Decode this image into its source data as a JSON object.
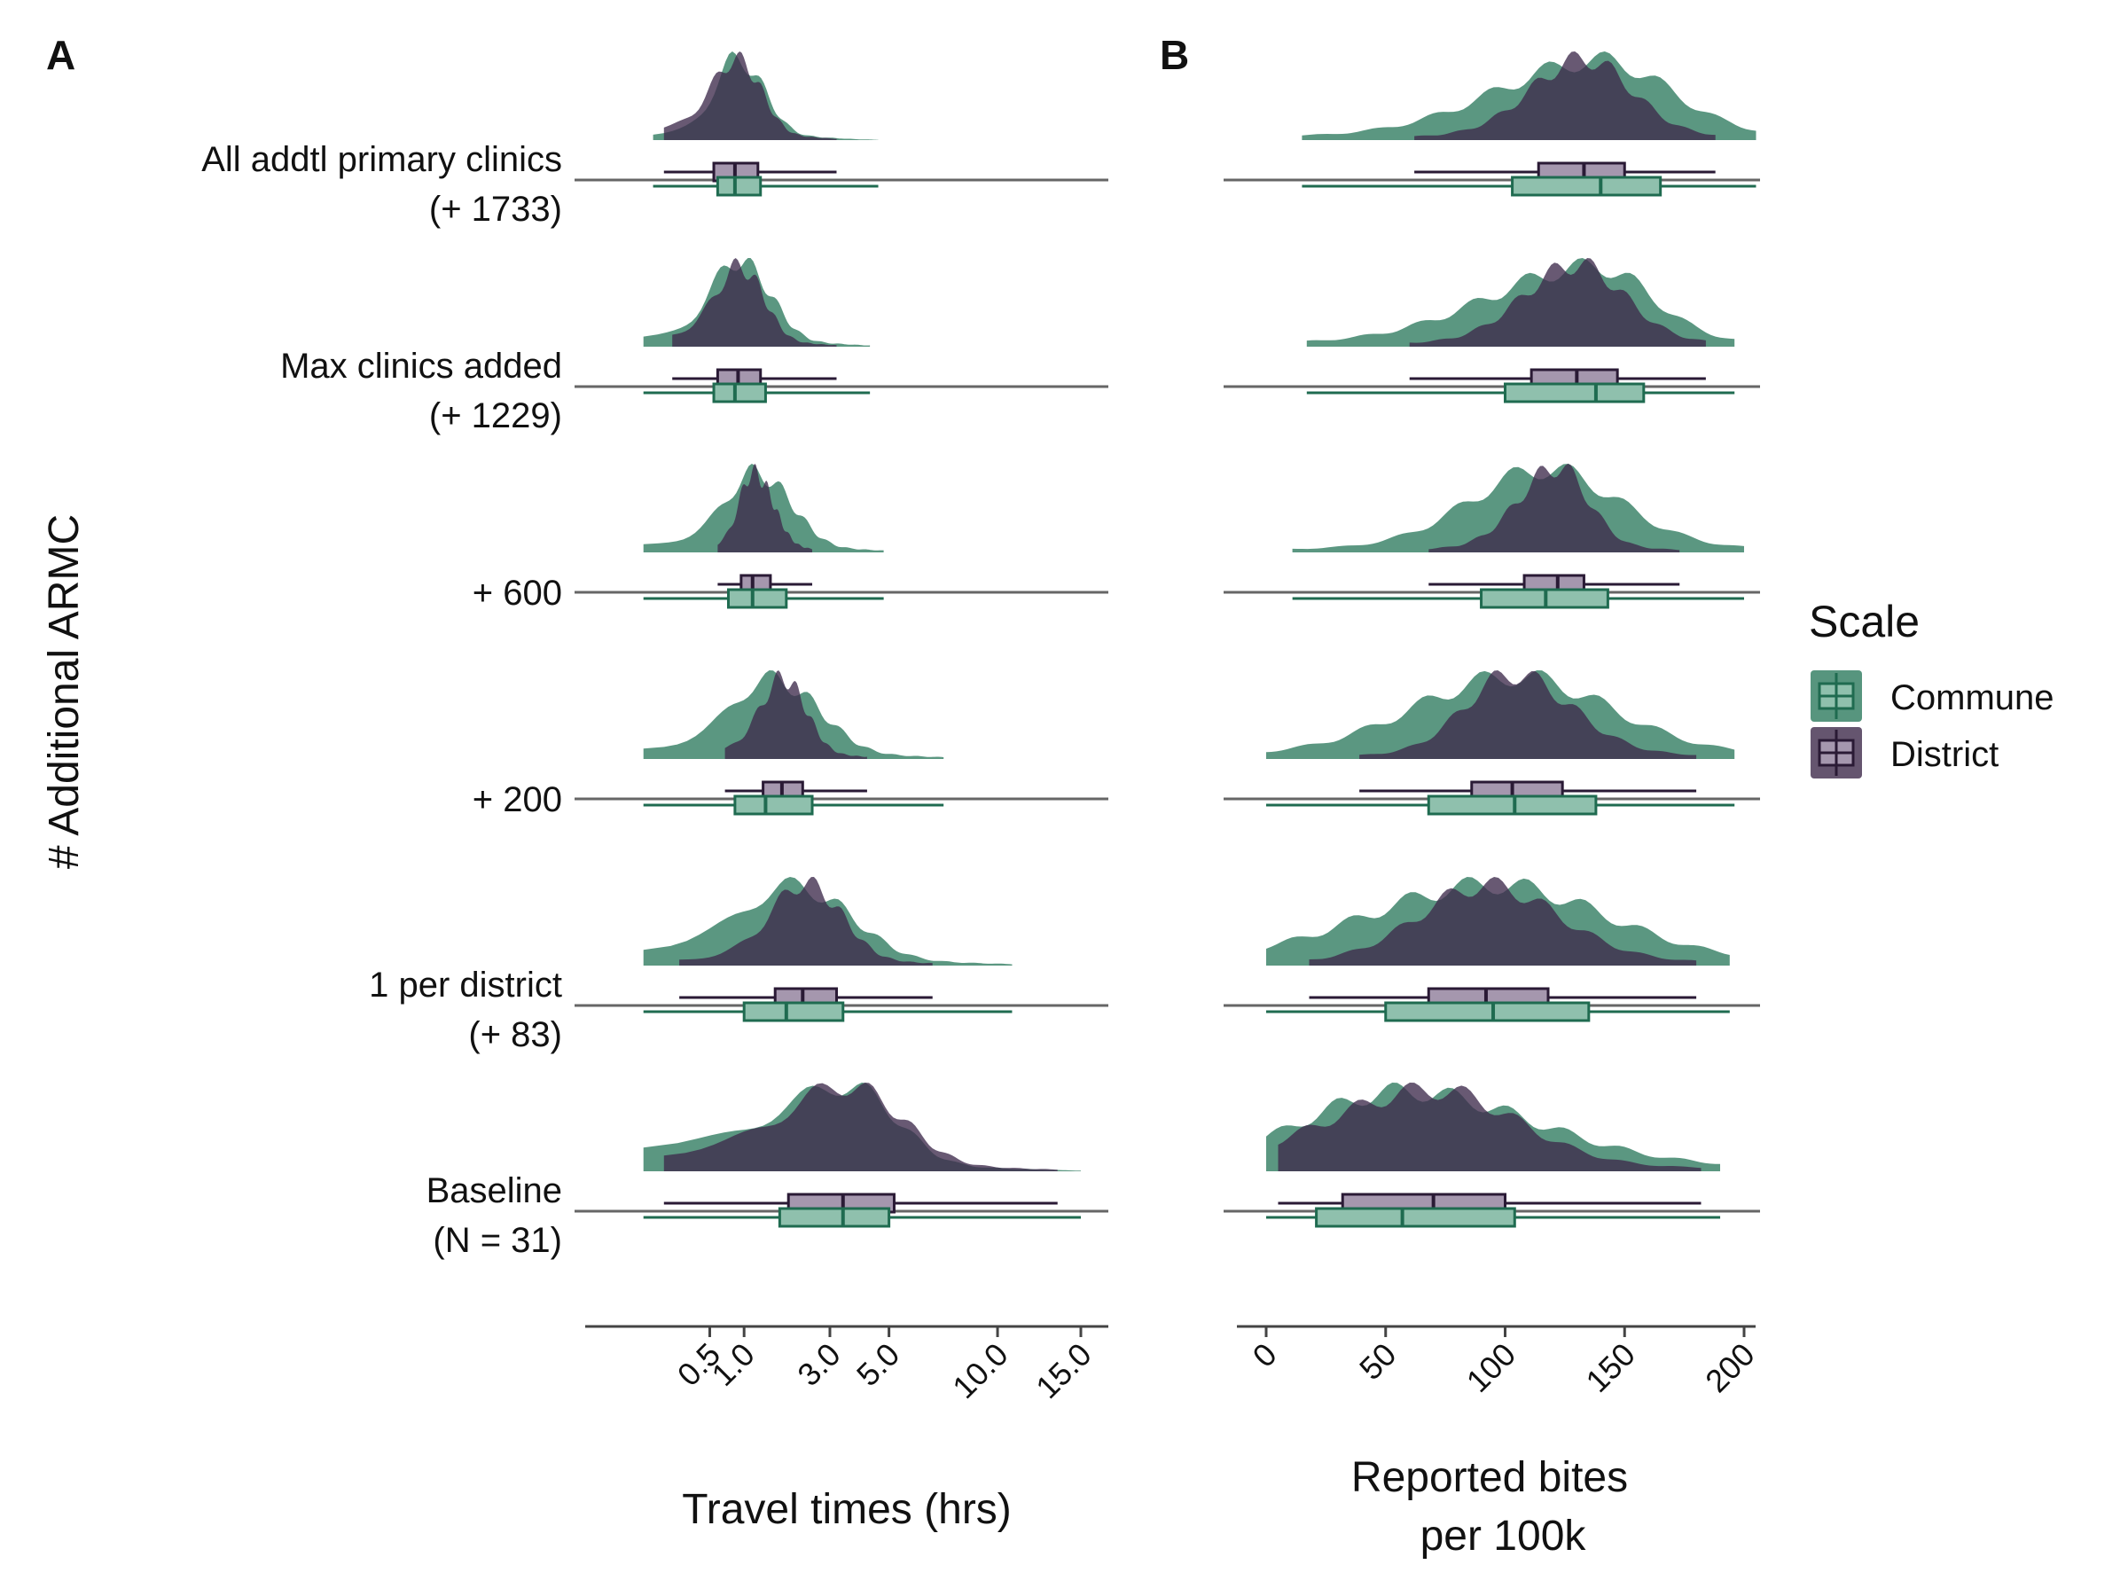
{
  "panels": {
    "a": {
      "tag": "A",
      "xlabel": "Travel times (hrs)"
    },
    "b": {
      "tag": "B",
      "xlabel_lines": [
        "Reported bites",
        "per 100k"
      ]
    }
  },
  "ylabel": "# Additional ARMC",
  "legend": {
    "title": "Scale",
    "items": [
      "Commune",
      "District"
    ]
  },
  "colors": {
    "commune_fill": "#2d7a5e",
    "commune_line": "#1f6b50",
    "commune_box": "#8fc0ad",
    "district_fill": "#3e2a4b",
    "district_line": "#2a1a35",
    "district_box": "#a597ae"
  },
  "chart_data": [
    {
      "type": "raincloud",
      "panel": "A",
      "xlabel": "Travel times (hrs)",
      "ylabel": "# Additional ARMC",
      "x_scale": "sqrt",
      "x_ticks": [
        0.5,
        1.0,
        3.0,
        5.0,
        10.0,
        15.0
      ],
      "x_tick_labels": [
        "0.5",
        "1.0",
        "3.0",
        "5.0",
        "10.0",
        "15.0"
      ],
      "xlim": [
        0,
        23
      ],
      "categories": [
        [
          "All addtl primary clinics",
          "(+ 1733)"
        ],
        [
          "Max clinics added",
          "(+ 1229)"
        ],
        [
          "+ 600"
        ],
        [
          "+ 200"
        ],
        [
          "1 per district",
          "(+ 83)"
        ],
        [
          "Baseline",
          "(N = 31)"
        ]
      ],
      "series": [
        {
          "name": "Commune",
          "boxes": [
            {
              "min": 0.05,
              "q1": 0.6,
              "median": 0.85,
              "q3": 1.3,
              "max": 4.6
            },
            {
              "min": 0.02,
              "q1": 0.55,
              "median": 0.85,
              "q3": 1.4,
              "max": 4.3
            },
            {
              "min": 0.02,
              "q1": 0.75,
              "median": 1.15,
              "q3": 1.85,
              "max": 4.8
            },
            {
              "min": 0.02,
              "q1": 0.85,
              "median": 1.4,
              "q3": 2.5,
              "max": 7.3
            },
            {
              "min": 0.02,
              "q1": 1.0,
              "median": 1.85,
              "q3": 3.4,
              "max": 10.8
            },
            {
              "min": 0.02,
              "q1": 1.7,
              "median": 3.4,
              "q3": 5.0,
              "max": 15.0
            }
          ]
        },
        {
          "name": "District",
          "boxes": [
            {
              "min": 0.1,
              "q1": 0.55,
              "median": 0.85,
              "q3": 1.25,
              "max": 3.2
            },
            {
              "min": 0.15,
              "q1": 0.6,
              "median": 0.9,
              "q3": 1.3,
              "max": 3.2
            },
            {
              "min": 0.6,
              "q1": 0.95,
              "median": 1.15,
              "q3": 1.5,
              "max": 2.5
            },
            {
              "min": 0.7,
              "q1": 1.35,
              "median": 1.75,
              "q3": 2.25,
              "max": 4.2
            },
            {
              "min": 0.2,
              "q1": 1.6,
              "median": 2.25,
              "q3": 3.2,
              "max": 6.8
            },
            {
              "min": 0.1,
              "q1": 1.9,
              "median": 3.4,
              "q3": 5.2,
              "max": 13.5
            }
          ]
        }
      ]
    },
    {
      "type": "raincloud",
      "panel": "B",
      "xlabel": "Reported bites per 100k",
      "ylabel": "# Additional ARMC",
      "x_scale": "linear",
      "x_ticks": [
        0,
        50,
        100,
        150,
        200
      ],
      "x_tick_labels": [
        "0",
        "50",
        "100",
        "150",
        "200"
      ],
      "xlim": [
        -10,
        205
      ],
      "categories": [
        [
          "All addtl primary clinics",
          "(+ 1733)"
        ],
        [
          "Max clinics added",
          "(+ 1229)"
        ],
        [
          "+ 600"
        ],
        [
          "+ 200"
        ],
        [
          "1 per district",
          "(+ 83)"
        ],
        [
          "Baseline",
          "(N = 31)"
        ]
      ],
      "series": [
        {
          "name": "Commune",
          "boxes": [
            {
              "min": 15,
              "q1": 103,
              "median": 140,
              "q3": 165,
              "max": 205
            },
            {
              "min": 17,
              "q1": 100,
              "median": 138,
              "q3": 158,
              "max": 196
            },
            {
              "min": 11,
              "q1": 90,
              "median": 117,
              "q3": 143,
              "max": 200
            },
            {
              "min": 0,
              "q1": 68,
              "median": 104,
              "q3": 138,
              "max": 196
            },
            {
              "min": 0,
              "q1": 50,
              "median": 95,
              "q3": 135,
              "max": 194
            },
            {
              "min": 0,
              "q1": 21,
              "median": 57,
              "q3": 104,
              "max": 190
            }
          ]
        },
        {
          "name": "District",
          "boxes": [
            {
              "min": 62,
              "q1": 114,
              "median": 133,
              "q3": 150,
              "max": 188
            },
            {
              "min": 60,
              "q1": 111,
              "median": 130,
              "q3": 147,
              "max": 184
            },
            {
              "min": 68,
              "q1": 108,
              "median": 122,
              "q3": 133,
              "max": 173
            },
            {
              "min": 39,
              "q1": 86,
              "median": 103,
              "q3": 124,
              "max": 180
            },
            {
              "min": 18,
              "q1": 68,
              "median": 92,
              "q3": 118,
              "max": 180
            },
            {
              "min": 5,
              "q1": 32,
              "median": 70,
              "q3": 100,
              "max": 182
            }
          ]
        }
      ]
    }
  ]
}
